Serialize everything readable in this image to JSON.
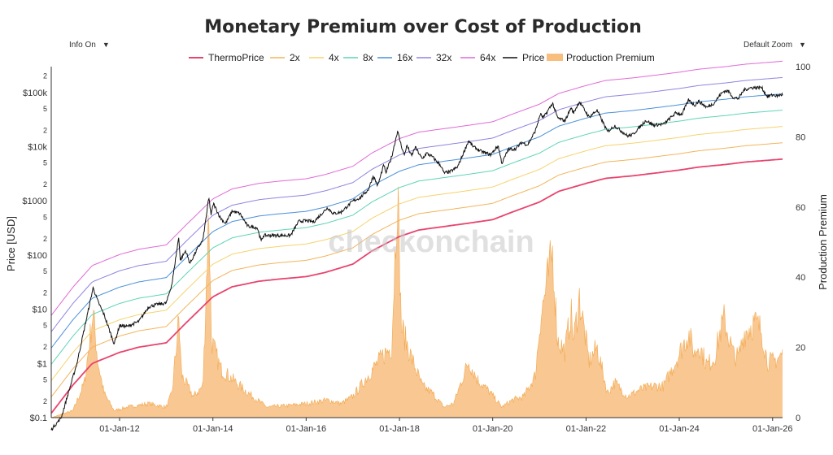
{
  "controls": {
    "info_label": "Info On",
    "zoom_label": "Default Zoom"
  },
  "watermark": "checkonchain",
  "chart_data": {
    "type": "line",
    "title": "Monetary Premium over Cost of Production",
    "ylabel": "Price [USD]",
    "y2label": "Production Premium",
    "xlabel": "",
    "yscale": "log",
    "ylim": [
      0.1,
      300000
    ],
    "y2lim": [
      0,
      100
    ],
    "y2ticks": [
      0,
      20,
      40,
      60,
      80,
      100
    ],
    "xlim": [
      "2010-07-15",
      "2026-03-20"
    ],
    "x_tick_labels": [
      "01-Jan-12",
      "01-Jan-14",
      "01-Jan-16",
      "01-Jan-18",
      "01-Jan-20",
      "01-Jan-22",
      "01-Jan-24",
      "01-Jan-26"
    ],
    "x_tick_dates": [
      "2012-01-01",
      "2014-01-01",
      "2016-01-01",
      "2018-01-01",
      "2020-01-01",
      "2022-01-01",
      "2024-01-01",
      "2026-01-01"
    ],
    "y_major_labels": [
      "$0.1",
      "$1",
      "$10",
      "$100",
      "$1000",
      "$10k",
      "$100k"
    ],
    "y_minor_labels": [
      "2",
      "5"
    ],
    "legend_position": "top-center",
    "grid": false,
    "dates": [
      "2010-07-15",
      "2011-01-01",
      "2011-06-01",
      "2012-01-01",
      "2012-06-01",
      "2013-01-01",
      "2013-06-01",
      "2014-01-01",
      "2014-06-01",
      "2015-01-01",
      "2015-06-01",
      "2016-01-01",
      "2016-06-01",
      "2017-01-01",
      "2017-06-01",
      "2018-01-01",
      "2018-06-01",
      "2019-01-01",
      "2019-06-01",
      "2020-01-01",
      "2020-06-01",
      "2021-01-01",
      "2021-06-01",
      "2022-01-01",
      "2022-06-01",
      "2023-01-01",
      "2023-06-01",
      "2024-01-01",
      "2024-06-01",
      "2025-01-01",
      "2025-06-01",
      "2026-01-01",
      "2026-03-20"
    ],
    "thermo_price": [
      0.12,
      0.4,
      1.0,
      1.6,
      2.0,
      2.4,
      5.5,
      17,
      26,
      33,
      36,
      40,
      48,
      68,
      120,
      220,
      290,
      340,
      380,
      450,
      620,
      950,
      1500,
      2100,
      2600,
      2900,
      3200,
      3700,
      4200,
      4700,
      5200,
      5700,
      5900
    ],
    "multiples": [
      {
        "name": "2x",
        "factor": 2,
        "color": "#f2b45c"
      },
      {
        "name": "4x",
        "factor": 4,
        "color": "#f5d36e"
      },
      {
        "name": "8x",
        "factor": 8,
        "color": "#5fd4b5"
      },
      {
        "name": "16x",
        "factor": 16,
        "color": "#4a90d9"
      },
      {
        "name": "32x",
        "factor": 32,
        "color": "#8f84e0"
      },
      {
        "name": "64x",
        "factor": 64,
        "color": "#e06ad6"
      }
    ],
    "price": [
      [
        "2010-07-15",
        0.06
      ],
      [
        "2010-10-01",
        0.1
      ],
      [
        "2011-02-01",
        1.0
      ],
      [
        "2011-06-08",
        25
      ],
      [
        "2011-07-15",
        14
      ],
      [
        "2011-09-01",
        8
      ],
      [
        "2011-11-20",
        2.3
      ],
      [
        "2012-01-01",
        5
      ],
      [
        "2012-03-01",
        4.8
      ],
      [
        "2012-06-01",
        6
      ],
      [
        "2012-08-15",
        11
      ],
      [
        "2012-10-01",
        12
      ],
      [
        "2013-01-01",
        13
      ],
      [
        "2013-02-15",
        30
      ],
      [
        "2013-04-09",
        220
      ],
      [
        "2013-04-20",
        80
      ],
      [
        "2013-06-01",
        120
      ],
      [
        "2013-07-05",
        70
      ],
      [
        "2013-09-01",
        130
      ],
      [
        "2013-10-15",
        190
      ],
      [
        "2013-11-30",
        1150
      ],
      [
        "2013-12-18",
        550
      ],
      [
        "2014-01-05",
        900
      ],
      [
        "2014-02-25",
        500
      ],
      [
        "2014-04-10",
        380
      ],
      [
        "2014-06-01",
        650
      ],
      [
        "2014-08-01",
        580
      ],
      [
        "2014-10-01",
        340
      ],
      [
        "2014-12-15",
        320
      ],
      [
        "2015-01-14",
        180
      ],
      [
        "2015-02-01",
        230
      ],
      [
        "2015-06-01",
        230
      ],
      [
        "2015-09-01",
        230
      ],
      [
        "2015-11-05",
        420
      ],
      [
        "2016-01-01",
        430
      ],
      [
        "2016-03-01",
        410
      ],
      [
        "2016-06-17",
        750
      ],
      [
        "2016-08-01",
        580
      ],
      [
        "2016-10-01",
        620
      ],
      [
        "2017-01-01",
        990
      ],
      [
        "2017-03-01",
        1150
      ],
      [
        "2017-05-01",
        1600
      ],
      [
        "2017-06-10",
        2900
      ],
      [
        "2017-07-15",
        1900
      ],
      [
        "2017-09-01",
        4700
      ],
      [
        "2017-09-15",
        3200
      ],
      [
        "2017-11-01",
        6500
      ],
      [
        "2017-12-17",
        19500
      ],
      [
        "2018-01-01",
        14000
      ],
      [
        "2018-02-06",
        6900
      ],
      [
        "2018-03-01",
        10500
      ],
      [
        "2018-04-05",
        6700
      ],
      [
        "2018-05-05",
        9800
      ],
      [
        "2018-06-28",
        5900
      ],
      [
        "2018-08-01",
        7600
      ],
      [
        "2018-09-15",
        6500
      ],
      [
        "2018-11-20",
        4500
      ],
      [
        "2018-12-15",
        3250
      ],
      [
        "2019-02-01",
        3450
      ],
      [
        "2019-04-01",
        4200
      ],
      [
        "2019-06-26",
        12800
      ],
      [
        "2019-08-01",
        10000
      ],
      [
        "2019-10-01",
        8200
      ],
      [
        "2019-12-15",
        7100
      ],
      [
        "2020-02-13",
        10400
      ],
      [
        "2020-03-13",
        4900
      ],
      [
        "2020-05-01",
        8800
      ],
      [
        "2020-07-01",
        9200
      ],
      [
        "2020-08-15",
        12000
      ],
      [
        "2020-10-01",
        10800
      ],
      [
        "2020-11-30",
        19500
      ],
      [
        "2021-01-08",
        40000
      ],
      [
        "2021-02-01",
        34000
      ],
      [
        "2021-04-14",
        63500
      ],
      [
        "2021-05-23",
        34000
      ],
      [
        "2021-07-20",
        30000
      ],
      [
        "2021-09-05",
        52000
      ],
      [
        "2021-09-25",
        42000
      ],
      [
        "2021-11-10",
        68000
      ],
      [
        "2022-01-24",
        35000
      ],
      [
        "2022-03-28",
        47000
      ],
      [
        "2022-06-18",
        18900
      ],
      [
        "2022-08-14",
        24300
      ],
      [
        "2022-11-21",
        15800
      ],
      [
        "2023-01-01",
        16600
      ],
      [
        "2023-03-01",
        23500
      ],
      [
        "2023-04-14",
        30400
      ],
      [
        "2023-06-15",
        25000
      ],
      [
        "2023-09-01",
        26000
      ],
      [
        "2023-12-05",
        42000
      ],
      [
        "2024-01-22",
        39500
      ],
      [
        "2024-03-14",
        73000
      ],
      [
        "2024-05-01",
        58000
      ],
      [
        "2024-06-01",
        69000
      ],
      [
        "2024-08-05",
        53000
      ],
      [
        "2024-10-01",
        64000
      ],
      [
        "2024-11-15",
        90000
      ],
      [
        "2024-12-17",
        106000
      ],
      [
        "2025-01-20",
        106000
      ],
      [
        "2025-02-28",
        80000
      ],
      [
        "2025-04-08",
        77000
      ],
      [
        "2025-05-22",
        111000
      ],
      [
        "2025-07-14",
        122000
      ],
      [
        "2025-08-14",
        123000
      ],
      [
        "2025-10-06",
        124000
      ],
      [
        "2025-11-21",
        84000
      ],
      [
        "2025-12-15",
        88000
      ],
      [
        "2026-01-10",
        90000
      ],
      [
        "2026-02-01",
        86000
      ],
      [
        "2026-03-20",
        92000
      ]
    ],
    "production_premium": [
      [
        "2010-07-15",
        0
      ],
      [
        "2011-01-01",
        2
      ],
      [
        "2011-04-01",
        10
      ],
      [
        "2011-06-08",
        30
      ],
      [
        "2011-07-15",
        16
      ],
      [
        "2011-09-01",
        7
      ],
      [
        "2011-11-20",
        2
      ],
      [
        "2012-03-01",
        3
      ],
      [
        "2012-08-15",
        4
      ],
      [
        "2013-01-01",
        3
      ],
      [
        "2013-02-15",
        7
      ],
      [
        "2013-04-09",
        28
      ],
      [
        "2013-05-01",
        12
      ],
      [
        "2013-08-01",
        6
      ],
      [
        "2013-10-15",
        9
      ],
      [
        "2013-11-30",
        60
      ],
      [
        "2013-12-20",
        22
      ],
      [
        "2014-03-01",
        14
      ],
      [
        "2014-06-01",
        11
      ],
      [
        "2014-09-01",
        8
      ],
      [
        "2014-12-15",
        5
      ],
      [
        "2015-03-01",
        3
      ],
      [
        "2015-09-01",
        3.5
      ],
      [
        "2016-01-01",
        4
      ],
      [
        "2016-06-17",
        5
      ],
      [
        "2016-10-01",
        4
      ],
      [
        "2017-01-01",
        6
      ],
      [
        "2017-06-10",
        14
      ],
      [
        "2017-09-01",
        18
      ],
      [
        "2017-11-01",
        20
      ],
      [
        "2017-12-17",
        66
      ],
      [
        "2018-01-15",
        26
      ],
      [
        "2018-04-05",
        17
      ],
      [
        "2018-06-28",
        9
      ],
      [
        "2018-09-15",
        7
      ],
      [
        "2018-12-15",
        3
      ],
      [
        "2019-03-01",
        4
      ],
      [
        "2019-06-26",
        16
      ],
      [
        "2019-09-01",
        11
      ],
      [
        "2019-12-15",
        7
      ],
      [
        "2020-03-13",
        3
      ],
      [
        "2020-06-01",
        5
      ],
      [
        "2020-09-01",
        6
      ],
      [
        "2020-11-30",
        12
      ],
      [
        "2021-01-08",
        28
      ],
      [
        "2021-04-14",
        47
      ],
      [
        "2021-05-23",
        22
      ],
      [
        "2021-07-20",
        19
      ],
      [
        "2021-09-05",
        30
      ],
      [
        "2021-09-25",
        22
      ],
      [
        "2021-11-10",
        34
      ],
      [
        "2022-01-24",
        16
      ],
      [
        "2022-03-28",
        20
      ],
      [
        "2022-06-18",
        7
      ],
      [
        "2022-08-14",
        10
      ],
      [
        "2022-11-21",
        6
      ],
      [
        "2023-03-01",
        8
      ],
      [
        "2023-06-15",
        9
      ],
      [
        "2023-09-01",
        9
      ],
      [
        "2023-12-05",
        16
      ],
      [
        "2024-03-14",
        24
      ],
      [
        "2024-05-01",
        18
      ],
      [
        "2024-06-01",
        21
      ],
      [
        "2024-08-05",
        15
      ],
      [
        "2024-10-01",
        17
      ],
      [
        "2024-11-15",
        24
      ],
      [
        "2024-12-17",
        28
      ],
      [
        "2025-02-28",
        18
      ],
      [
        "2025-04-08",
        17
      ],
      [
        "2025-05-22",
        24
      ],
      [
        "2025-07-14",
        26
      ],
      [
        "2025-08-14",
        27
      ],
      [
        "2025-10-06",
        25
      ],
      [
        "2025-11-21",
        16
      ],
      [
        "2026-01-10",
        16
      ],
      [
        "2026-03-20",
        18
      ]
    ],
    "legend": [
      {
        "name": "ThermoPrice",
        "color": "#e8446e"
      },
      {
        "name": "2x",
        "color": "#f2b45c"
      },
      {
        "name": "4x",
        "color": "#f5d36e"
      },
      {
        "name": "8x",
        "color": "#5fd4b5"
      },
      {
        "name": "16x",
        "color": "#4a90d9"
      },
      {
        "name": "32x",
        "color": "#8f84e0"
      },
      {
        "name": "64x",
        "color": "#e06ad6"
      },
      {
        "name": "Price",
        "color": "#111111"
      },
      {
        "name": "Production Premium",
        "color": "#f8be7e"
      }
    ],
    "colors": {
      "thermo": "#e8446e",
      "price": "#111111",
      "premium_fill": "#f8c48c",
      "premium_line": "#f3a94e"
    }
  }
}
